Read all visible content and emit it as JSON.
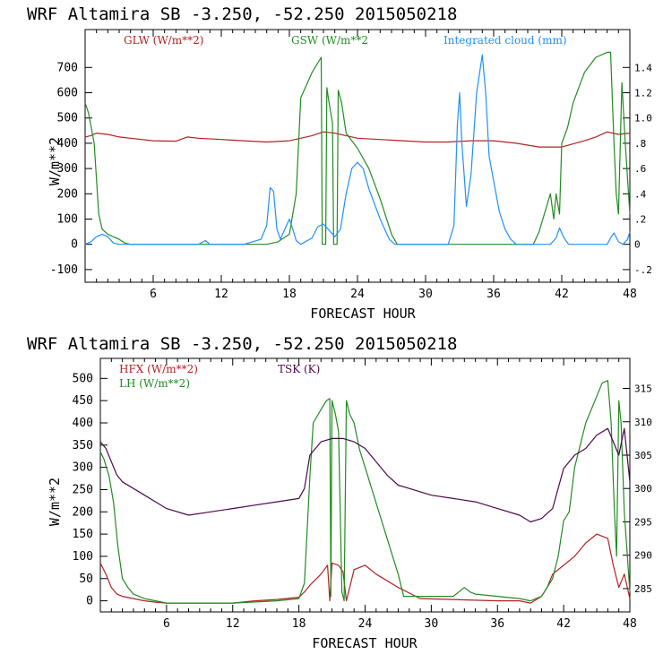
{
  "chart_data": [
    {
      "type": "line",
      "title": "WRF   Altamira   SB   -3.250,  -52.250   2015050218",
      "xlabel": "FORECAST HOUR",
      "ylabel": "W/m**2",
      "xlim": [
        0,
        48
      ],
      "ylim": [
        -150,
        850
      ],
      "y2lim": [
        -0.3,
        1.7
      ],
      "xticks": [
        6,
        12,
        18,
        24,
        30,
        36,
        42,
        48
      ],
      "yticks": [
        -100,
        0,
        100,
        200,
        300,
        400,
        500,
        600,
        700
      ],
      "y2ticks": [
        "-.2",
        "0",
        ".2",
        ".4",
        ".6",
        ".8",
        "1.0",
        "1.2",
        "1.4"
      ],
      "y2tick_values": [
        -0.2,
        0,
        0.2,
        0.4,
        0.6,
        0.8,
        1.0,
        1.2,
        1.4
      ],
      "series": [
        {
          "name": "GLW (W/m**2)",
          "color": "#b22222",
          "axis": "left",
          "x": [
            0,
            0.5,
            1,
            2,
            3,
            4,
            6,
            8,
            9,
            10,
            12,
            14,
            16,
            18,
            19,
            20,
            21,
            22,
            24,
            26,
            28,
            30,
            32,
            34,
            36,
            38,
            40,
            42,
            44,
            45,
            46,
            47,
            48
          ],
          "values": [
            425,
            430,
            440,
            435,
            425,
            420,
            410,
            408,
            425,
            420,
            415,
            410,
            405,
            410,
            420,
            430,
            445,
            440,
            420,
            415,
            410,
            405,
            405,
            410,
            410,
            400,
            385,
            385,
            410,
            425,
            445,
            435,
            440
          ]
        },
        {
          "name": "GSW (W/m**2",
          "color": "#228b22",
          "axis": "left",
          "x": [
            0,
            0.3,
            0.8,
            1.2,
            1.5,
            2,
            3,
            3.5,
            4,
            16,
            17,
            18,
            18.6,
            19,
            20,
            20.8,
            20.9,
            21.2,
            21.3,
            21.5,
            21.8,
            21.9,
            22.2,
            22.3,
            22.6,
            23,
            24,
            25,
            26,
            27,
            27.5,
            39.5,
            40,
            41,
            41.3,
            41.5,
            41.8,
            42,
            42.5,
            43,
            44,
            45,
            46,
            46.3,
            46.6,
            46.8,
            47,
            47.3,
            47.6,
            48
          ],
          "values": [
            560,
            520,
            400,
            120,
            60,
            40,
            20,
            5,
            0,
            0,
            10,
            40,
            200,
            580,
            680,
            740,
            0,
            0,
            620,
            560,
            480,
            0,
            0,
            610,
            560,
            440,
            380,
            300,
            180,
            40,
            0,
            0,
            50,
            200,
            100,
            200,
            120,
            400,
            460,
            560,
            680,
            740,
            760,
            760,
            400,
            200,
            120,
            640,
            400,
            120
          ]
        },
        {
          "name": "Integrated cloud (mm)",
          "color": "#1e90ff",
          "axis": "right",
          "x": [
            0,
            0.5,
            1,
            1.5,
            2,
            2.5,
            3,
            3.5,
            4,
            10,
            10.6,
            11,
            14,
            15.5,
            16,
            16.3,
            16.6,
            16.9,
            17.2,
            17.7,
            18,
            18.3,
            18.6,
            19,
            20,
            20.5,
            21,
            22,
            22.5,
            23,
            23.5,
            24,
            24.5,
            25,
            26,
            26.8,
            27.3,
            32,
            32.5,
            32.8,
            33,
            33.2,
            33.6,
            34,
            34.5,
            35,
            35.3,
            35.6,
            36,
            36.5,
            37,
            37.5,
            38,
            38.5,
            41,
            41.5,
            41.8,
            42.2,
            42.6,
            46,
            46.3,
            46.6,
            47,
            47.4,
            47.8,
            48
          ],
          "values": [
            0.0,
            0.02,
            0.06,
            0.08,
            0.06,
            0.01,
            0.0,
            0.0,
            0.0,
            0.0,
            0.03,
            0.0,
            0.0,
            0.04,
            0.15,
            0.45,
            0.42,
            0.12,
            0.04,
            0.14,
            0.2,
            0.12,
            0.03,
            0.0,
            0.05,
            0.14,
            0.16,
            0.06,
            0.12,
            0.4,
            0.6,
            0.65,
            0.6,
            0.44,
            0.2,
            0.04,
            0.0,
            0.0,
            0.15,
            0.95,
            1.2,
            0.8,
            0.3,
            0.55,
            1.2,
            1.5,
            1.2,
            0.7,
            0.5,
            0.26,
            0.12,
            0.04,
            0.0,
            0.0,
            0.0,
            0.05,
            0.13,
            0.05,
            0.0,
            0.0,
            0.05,
            0.09,
            0.02,
            0.0,
            0.04,
            0.1
          ]
        }
      ]
    },
    {
      "type": "line",
      "title": "WRF   Altamira   SB   -3.250,  -52.250   2015050218",
      "xlabel": "FORECAST HOUR",
      "ylabel": "W/m**2",
      "xlim": [
        0,
        48
      ],
      "ylim": [
        -25,
        545
      ],
      "y2lim": [
        281.5,
        319.5
      ],
      "xticks": [
        6,
        12,
        18,
        24,
        30,
        36,
        42,
        48
      ],
      "yticks": [
        0,
        50,
        100,
        150,
        200,
        250,
        300,
        350,
        400,
        450,
        500
      ],
      "y2ticks": [
        "285",
        "290",
        "295",
        "300",
        "305",
        "310",
        "315"
      ],
      "y2tick_values": [
        285,
        290,
        295,
        300,
        305,
        310,
        315
      ],
      "series": [
        {
          "name": "HFX (W/m**2)",
          "color": "#b22222",
          "axis": "left",
          "x": [
            0,
            0.5,
            1,
            1.5,
            2,
            3,
            4,
            5,
            6,
            12,
            14,
            16,
            18,
            18.5,
            19,
            20,
            20.6,
            20.8,
            21,
            21.6,
            22,
            22.3,
            23,
            24,
            25,
            26,
            27,
            29,
            36,
            38,
            39,
            40,
            40.5,
            41,
            42,
            43,
            44,
            45,
            46,
            46.5,
            47,
            47.5,
            48
          ],
          "values": [
            85,
            60,
            30,
            15,
            10,
            5,
            0,
            -3,
            -5,
            -5,
            0,
            3,
            8,
            20,
            35,
            60,
            80,
            0,
            85,
            80,
            65,
            0,
            70,
            80,
            60,
            45,
            30,
            5,
            0,
            0,
            -5,
            10,
            30,
            60,
            80,
            100,
            130,
            150,
            140,
            80,
            30,
            60,
            5
          ]
        },
        {
          "name": "LH (W/m**2)",
          "color": "#228b22",
          "axis": "left",
          "x": [
            0,
            0.3,
            0.8,
            1.2,
            1.6,
            2,
            2.5,
            3,
            4,
            5,
            6,
            12,
            16,
            18,
            18.5,
            19,
            19.3,
            20,
            20.5,
            20.8,
            20.9,
            21,
            21.3,
            21.6,
            21.9,
            22.1,
            22.3,
            22.6,
            23,
            23.5,
            24,
            25,
            26,
            27,
            27.5,
            32,
            33,
            33.5,
            34,
            36,
            38,
            39,
            40,
            41,
            41.5,
            42,
            42.5,
            43,
            44,
            45,
            45.5,
            46,
            46.3,
            46.6,
            46.8,
            47,
            47.2,
            47.5,
            48
          ],
          "values": [
            335,
            320,
            280,
            220,
            120,
            50,
            30,
            15,
            5,
            0,
            -5,
            -5,
            0,
            5,
            40,
            280,
            400,
            430,
            450,
            455,
            10,
            450,
            420,
            380,
            20,
            0,
            450,
            420,
            400,
            340,
            300,
            220,
            140,
            60,
            10,
            10,
            30,
            20,
            15,
            10,
            5,
            0,
            10,
            50,
            100,
            180,
            200,
            300,
            400,
            460,
            490,
            495,
            400,
            200,
            100,
            450,
            400,
            200,
            20
          ]
        },
        {
          "name": "TSK (K)",
          "color": "#4b0a4b",
          "axis": "right",
          "x": [
            0,
            0.5,
            1,
            1.5,
            2,
            3,
            4,
            5,
            6,
            8,
            10,
            12,
            14,
            16,
            18,
            18.5,
            19,
            20,
            21,
            22,
            23,
            24,
            25,
            26,
            27,
            28,
            30,
            32,
            34,
            36,
            38,
            39,
            40,
            41,
            42,
            43,
            44,
            45,
            46,
            46.5,
            47,
            47.5,
            48
          ],
          "values": [
            307,
            306,
            304,
            302,
            301,
            300,
            299,
            298,
            297,
            296,
            296.5,
            297,
            297.5,
            298,
            298.5,
            300,
            305,
            307,
            307.5,
            307.5,
            307,
            306,
            304,
            302,
            300.5,
            300,
            299,
            298.5,
            298,
            297,
            296,
            295,
            295.5,
            297,
            303,
            305,
            306,
            308,
            309,
            307,
            305,
            309,
            301
          ]
        }
      ]
    }
  ]
}
